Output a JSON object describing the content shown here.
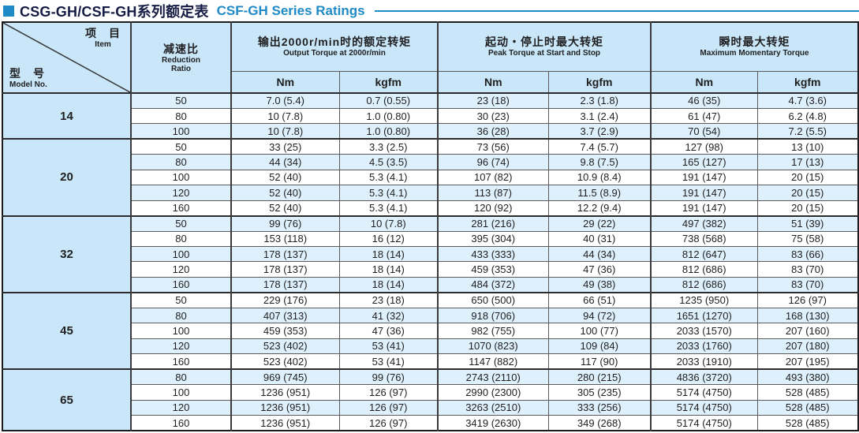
{
  "title": {
    "zh": "CSG-GH/CSF-GH系列额定表",
    "en": "CSF-GH Series Ratings"
  },
  "header": {
    "item_zh": "项　目",
    "item_en": "Item",
    "model_zh": "型　号",
    "model_en": "Model No.",
    "ratio_zh": "减速比",
    "ratio_en_line1": "Reduction",
    "ratio_en_line2": "Ratio",
    "groups": [
      {
        "zh": "输出2000r/min时的额定转矩",
        "en": "Output Torque at 2000r/min"
      },
      {
        "zh": "起动・停止时最大转矩",
        "en": "Peak Torque at Start and Stop"
      },
      {
        "zh": "瞬时最大转矩",
        "en": "Maximum Momentary Torque"
      }
    ],
    "units": [
      "Nm",
      "kgfm",
      "Nm",
      "kgfm",
      "Nm",
      "kgfm"
    ]
  },
  "models": [
    {
      "model": "14",
      "rows": [
        {
          "ratio": "50",
          "values": [
            "7.0 (5.4)",
            "0.7 (0.55)",
            "23 (18)",
            "2.3 (1.8)",
            "46 (35)",
            "4.7 (3.6)"
          ]
        },
        {
          "ratio": "80",
          "values": [
            "10 (7.8)",
            "1.0 (0.80)",
            "30 (23)",
            "3.1 (2.4)",
            "61 (47)",
            "6.2 (4.8)"
          ]
        },
        {
          "ratio": "100",
          "values": [
            "10 (7.8)",
            "1.0 (0.80)",
            "36 (28)",
            "3.7 (2.9)",
            "70 (54)",
            "7.2 (5.5)"
          ]
        }
      ]
    },
    {
      "model": "20",
      "rows": [
        {
          "ratio": "50",
          "values": [
            "33 (25)",
            "3.3 (2.5)",
            "73 (56)",
            "7.4 (5.7)",
            "127 (98)",
            "13 (10)"
          ]
        },
        {
          "ratio": "80",
          "values": [
            "44 (34)",
            "4.5 (3.5)",
            "96 (74)",
            "9.8 (7.5)",
            "165 (127)",
            "17 (13)"
          ]
        },
        {
          "ratio": "100",
          "values": [
            "52 (40)",
            "5.3 (4.1)",
            "107 (82)",
            "10.9 (8.4)",
            "191 (147)",
            "20 (15)"
          ]
        },
        {
          "ratio": "120",
          "values": [
            "52 (40)",
            "5.3 (4.1)",
            "113 (87)",
            "11.5 (8.9)",
            "191 (147)",
            "20 (15)"
          ]
        },
        {
          "ratio": "160",
          "values": [
            "52 (40)",
            "5.3 (4.1)",
            "120 (92)",
            "12.2 (9.4)",
            "191 (147)",
            "20 (15)"
          ]
        }
      ]
    },
    {
      "model": "32",
      "rows": [
        {
          "ratio": "50",
          "values": [
            "99 (76)",
            "10 (7.8)",
            "281 (216)",
            "29 (22)",
            "497 (382)",
            "51 (39)"
          ]
        },
        {
          "ratio": "80",
          "values": [
            "153 (118)",
            "16 (12)",
            "395 (304)",
            "40 (31)",
            "738 (568)",
            "75 (58)"
          ]
        },
        {
          "ratio": "100",
          "values": [
            "178 (137)",
            "18 (14)",
            "433 (333)",
            "44 (34)",
            "812 (647)",
            "83 (66)"
          ]
        },
        {
          "ratio": "120",
          "values": [
            "178 (137)",
            "18 (14)",
            "459 (353)",
            "47 (36)",
            "812 (686)",
            "83 (70)"
          ]
        },
        {
          "ratio": "160",
          "values": [
            "178 (137)",
            "18 (14)",
            "484 (372)",
            "49 (38)",
            "812 (686)",
            "83 (70)"
          ]
        }
      ]
    },
    {
      "model": "45",
      "rows": [
        {
          "ratio": "50",
          "values": [
            "229 (176)",
            "23 (18)",
            "650 (500)",
            "66 (51)",
            "1235 (950)",
            "126 (97)"
          ]
        },
        {
          "ratio": "80",
          "values": [
            "407 (313)",
            "41 (32)",
            "918 (706)",
            "94 (72)",
            "1651 (1270)",
            "168 (130)"
          ]
        },
        {
          "ratio": "100",
          "values": [
            "459 (353)",
            "47 (36)",
            "982 (755)",
            "100 (77)",
            "2033 (1570)",
            "207 (160)"
          ]
        },
        {
          "ratio": "120",
          "values": [
            "523 (402)",
            "53 (41)",
            "1070 (823)",
            "109 (84)",
            "2033 (1760)",
            "207 (180)"
          ]
        },
        {
          "ratio": "160",
          "values": [
            "523 (402)",
            "53 (41)",
            "1147 (882)",
            "117 (90)",
            "2033 (1910)",
            "207 (195)"
          ]
        }
      ]
    },
    {
      "model": "65",
      "rows": [
        {
          "ratio": "80",
          "values": [
            "969 (745)",
            "99 (76)",
            "2743 (2110)",
            "280 (215)",
            "4836 (3720)",
            "493 (380)"
          ]
        },
        {
          "ratio": "100",
          "values": [
            "1236 (951)",
            "126 (97)",
            "2990 (2300)",
            "305 (235)",
            "5174 (4750)",
            "528 (485)"
          ]
        },
        {
          "ratio": "120",
          "values": [
            "1236 (951)",
            "126 (97)",
            "3263 (2510)",
            "333 (256)",
            "5174 (4750)",
            "528 (485)"
          ]
        },
        {
          "ratio": "160",
          "values": [
            "1236 (951)",
            "126 (97)",
            "3419 (2630)",
            "349 (268)",
            "5174 (4750)",
            "528 (485)"
          ]
        }
      ]
    }
  ],
  "colors": {
    "accent_blue": "#1e8ac6",
    "title_navy": "#161c44",
    "header_bg": "#c9e7f8",
    "alt_row_bg": "#def0fb",
    "border_dark": "#2b2b2d",
    "border_gray": "#5a5a5c"
  }
}
